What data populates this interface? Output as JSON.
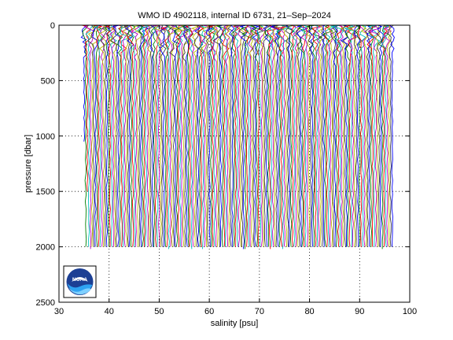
{
  "chart_data": {
    "type": "line",
    "title": "WMO ID 4902118, internal ID 6731, 21–Sep–2024",
    "xlabel": "salinity [psu]",
    "ylabel": "pressure [dbar]",
    "xlim": [
      30,
      100
    ],
    "ylim": [
      0,
      2500
    ],
    "y_reversed": true,
    "x_ticks": [
      30,
      40,
      50,
      60,
      70,
      80,
      90,
      100
    ],
    "y_ticks": [
      0,
      500,
      1000,
      1500,
      2000,
      2500
    ],
    "x_tick_labels": [
      "30",
      "40",
      "50",
      "60",
      "70",
      "80",
      "90",
      "100"
    ],
    "y_tick_labels": [
      "0",
      "500",
      "1000",
      "1500",
      "2000",
      "2500"
    ],
    "grid": "dotted",
    "series_description_note": "",
    "profile_offset_start": 35.0,
    "profile_offset_end": 96.5,
    "profile_count": 190,
    "profile_max_pressure": 2000,
    "colors_cycle": [
      "#0000ff",
      "#008000",
      "#ff0000",
      "#00bfbf",
      "#bf00bf",
      "#bfbf00",
      "#404040"
    ],
    "logo": "noaa-logo",
    "logo_text": "NOAA"
  }
}
